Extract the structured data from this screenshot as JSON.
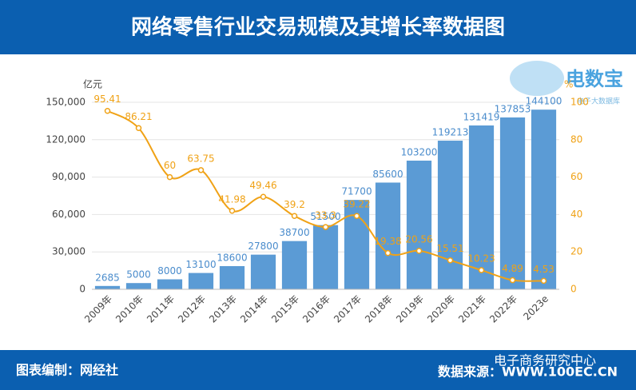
{
  "header": {
    "title": "网络零售行业交易规模及其增长率数据图"
  },
  "logo": {
    "name": "电数宝",
    "tagline": "电子大数据库"
  },
  "chart_data": {
    "type": "bar-line",
    "y_label": "亿元",
    "y2_label": "%",
    "categories": [
      "2009年",
      "2010年",
      "2011年",
      "2012年",
      "2013年",
      "2014年",
      "2015年",
      "2016年",
      "2017年",
      "2018年",
      "2019年",
      "2020年",
      "2021年",
      "2022年",
      "2023e"
    ],
    "series": [
      {
        "type": "bar",
        "color": "#5b9bd5",
        "values": [
          2685,
          5000,
          8000,
          13100,
          18600,
          27800,
          38700,
          51500,
          71700,
          85600,
          103200,
          119213,
          131419,
          137853,
          144100
        ]
      },
      {
        "type": "line",
        "axis": "y2",
        "color": "#f0a216",
        "values": [
          95.41,
          86.21,
          60,
          63.75,
          41.98,
          49.46,
          39.2,
          33.3,
          39.22,
          19.38,
          20.56,
          15.51,
          10.23,
          4.89,
          4.53
        ]
      }
    ],
    "ylim": [
      0,
      150000
    ],
    "yticks": [
      0,
      {
        "value": 30000,
        "label": "30,000"
      },
      {
        "value": 60000,
        "label": "60,000"
      },
      {
        "value": 90000,
        "label": "90,000"
      },
      {
        "value": 120000,
        "label": "120,000"
      },
      {
        "value": 150000,
        "label": "150,000"
      }
    ],
    "y2lim": [
      0,
      100
    ],
    "y2ticks": [
      0,
      20,
      40,
      60,
      80,
      100
    ],
    "grid": true
  },
  "footer": {
    "credit": "图表编制：网经社",
    "source": "数据来源：WWW.100EC.CN",
    "watermark": "电子商务研究中心"
  }
}
